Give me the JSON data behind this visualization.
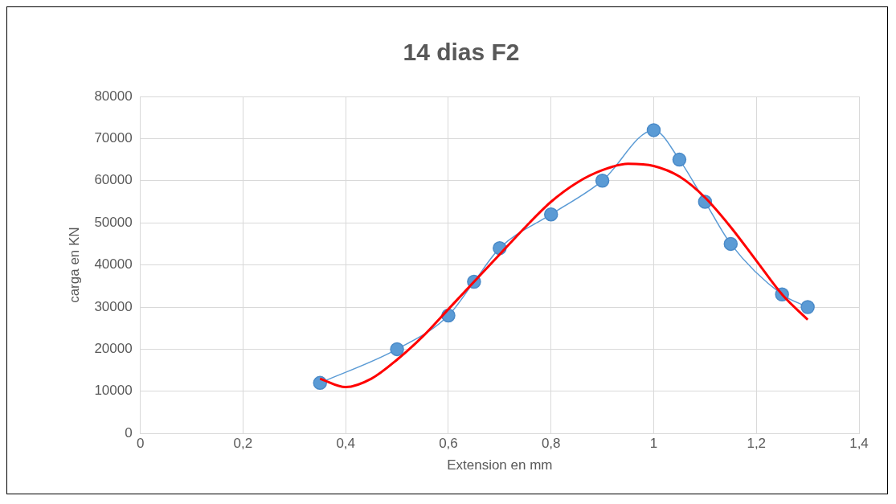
{
  "chart_data": {
    "type": "line",
    "title": "14 dias F2",
    "xlabel": "Extension en mm",
    "ylabel": "carga en KN",
    "xlim": [
      0,
      1.4
    ],
    "xticks": [
      0,
      {
        "value": 0.2,
        "label": "0,2"
      },
      {
        "value": 0.4,
        "label": "0,4"
      },
      {
        "value": 0.6,
        "label": "0,6"
      },
      {
        "value": 0.8,
        "label": "0,8"
      },
      1,
      {
        "value": 1.2,
        "label": "1,2"
      },
      {
        "value": 1.4,
        "label": "1,4"
      }
    ],
    "ylim": [
      0,
      80000
    ],
    "yticks": [
      0,
      10000,
      20000,
      30000,
      40000,
      50000,
      60000,
      70000,
      80000
    ],
    "grid": true,
    "legend": false,
    "series": [
      {
        "type": "line",
        "color": "#5b9bd5",
        "marker": "circle",
        "line_style": "solid",
        "x": [
          0.35,
          0.5,
          0.6,
          0.65,
          0.7,
          0.8,
          0.9,
          1.0,
          1.05,
          1.1,
          1.15,
          1.25,
          1.3
        ],
        "values": [
          12000,
          20000,
          28000,
          36000,
          44000,
          52000,
          60000,
          72000,
          65000,
          55000,
          45000,
          33000,
          30000
        ]
      },
      {
        "type": "line",
        "color": "#ff0000",
        "marker": "none",
        "line_style": "solid",
        "x": [
          0.35,
          0.4,
          0.45,
          0.5,
          0.55,
          0.6,
          0.65,
          0.7,
          0.75,
          0.8,
          0.85,
          0.9,
          0.95,
          1.0,
          1.05,
          1.1,
          1.15,
          1.2,
          1.25,
          1.3
        ],
        "values": [
          13000,
          11000,
          13000,
          17500,
          23000,
          29500,
          36000,
          42500,
          49000,
          55000,
          59500,
          62500,
          64000,
          63500,
          61000,
          56000,
          49000,
          41000,
          33000,
          27000
        ]
      }
    ]
  }
}
